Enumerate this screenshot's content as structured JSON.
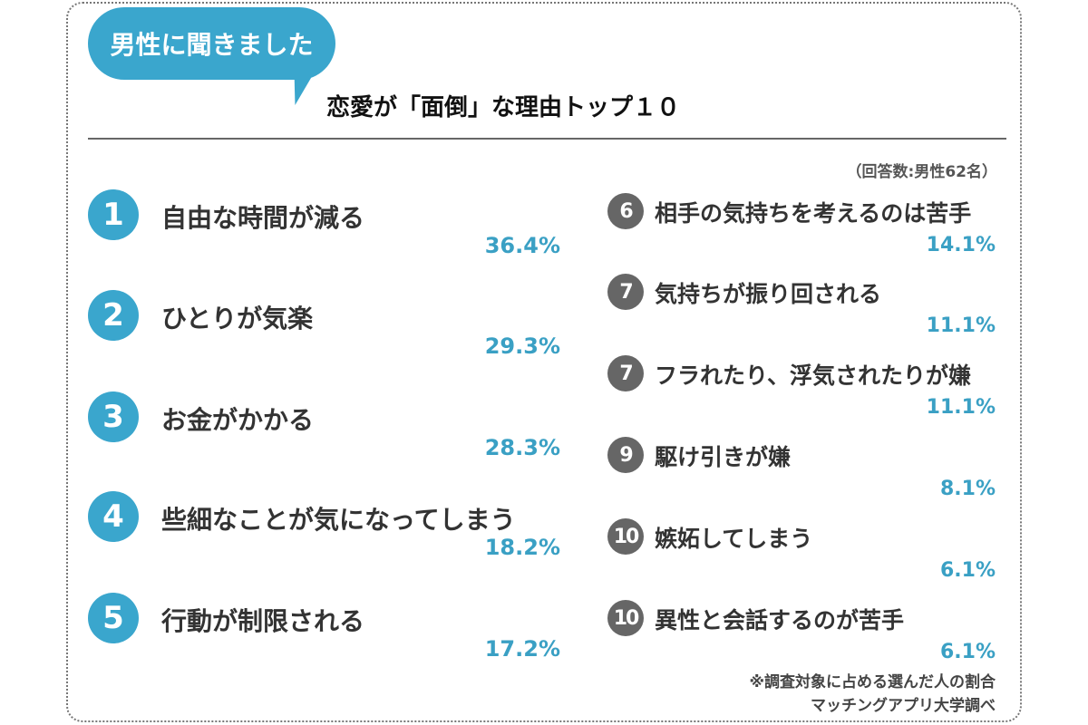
{
  "bubble": "男性に聞きました",
  "title": "恋愛が「面倒」な理由トップ１０",
  "respondents": "（回答数:男性62名）",
  "items": [
    {
      "rank": "1",
      "label": "自由な時間が減る",
      "pct": "36.4%"
    },
    {
      "rank": "2",
      "label": "ひとりが気楽",
      "pct": "29.3%"
    },
    {
      "rank": "3",
      "label": "お金がかかる",
      "pct": "28.3%"
    },
    {
      "rank": "4",
      "label": "些細なことが気になってしまう",
      "pct": "18.2%"
    },
    {
      "rank": "5",
      "label": "行動が制限される",
      "pct": "17.2%"
    },
    {
      "rank": "6",
      "label": "相手の気持ちを考えるのは苦手",
      "pct": "14.1%"
    },
    {
      "rank": "7",
      "label": "気持ちが振り回される",
      "pct": "11.1%"
    },
    {
      "rank": "7",
      "label": "フラれたり、浮気されたりが嫌",
      "pct": "11.1%"
    },
    {
      "rank": "9",
      "label": "駆け引きが嫌",
      "pct": "8.1%"
    },
    {
      "rank": "10",
      "label": "嫉妬してしまう",
      "pct": "6.1%"
    },
    {
      "rank": "10",
      "label": "異性と会話するのが苦手",
      "pct": "6.1%"
    }
  ],
  "footnote": "※調査対象に占める選んだ人の割合",
  "source": "マッチングアプリ大学調べ",
  "colors": {
    "accent": "#3aa6cd",
    "rank_gray": "#666666"
  }
}
